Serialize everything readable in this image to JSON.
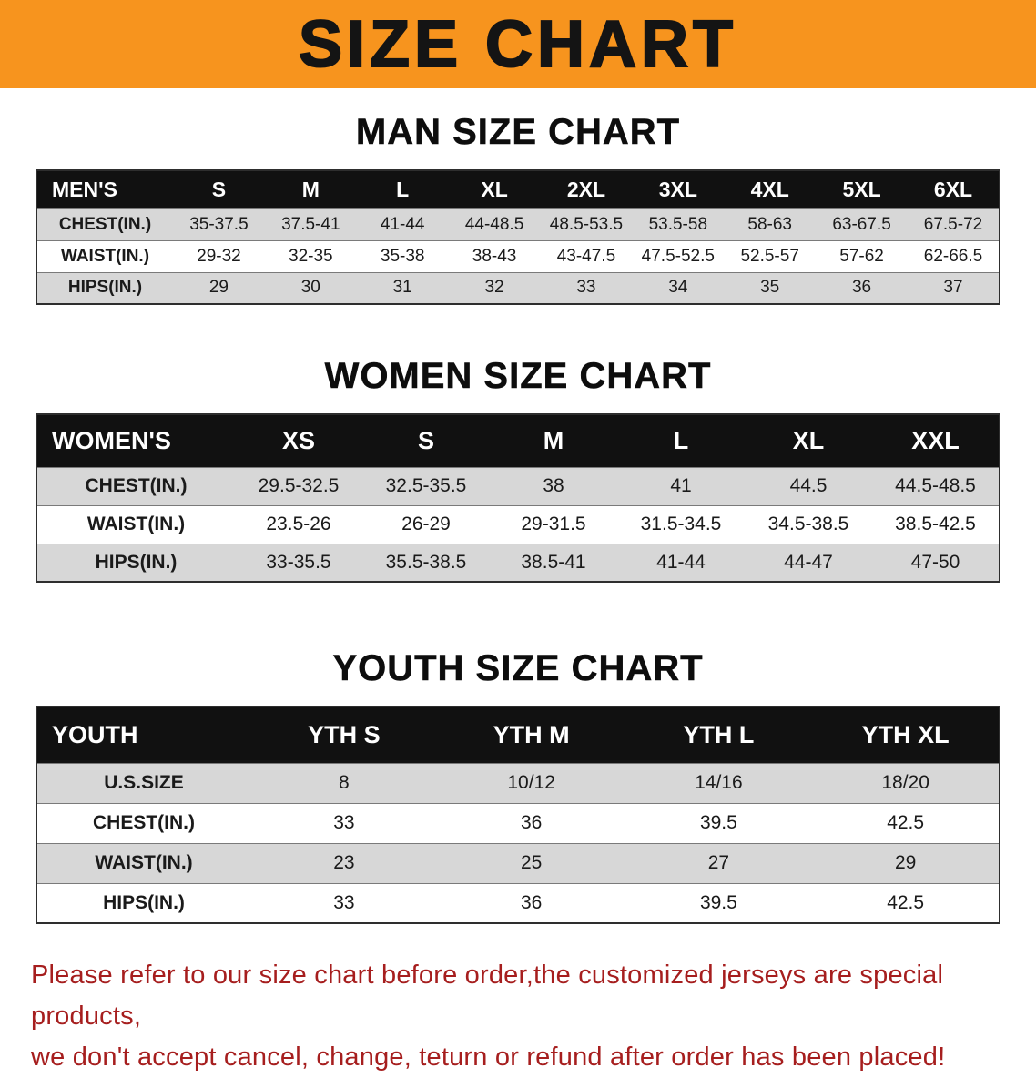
{
  "banner": {
    "title": "SIZE CHART",
    "bg_color": "#F7941E"
  },
  "colors": {
    "table_header_bg": "#111111",
    "table_row_alt": "#d7d7d7",
    "disclaimer_text": "#A61E1E"
  },
  "sections": {
    "men": {
      "heading": "MAN SIZE CHART",
      "table": {
        "header": [
          "MEN'S",
          "S",
          "M",
          "L",
          "XL",
          "2XL",
          "3XL",
          "4XL",
          "5XL",
          "6XL"
        ],
        "rows": [
          [
            "CHEST(IN.)",
            "35-37.5",
            "37.5-41",
            "41-44",
            "44-48.5",
            "48.5-53.5",
            "53.5-58",
            "58-63",
            "63-67.5",
            "67.5-72"
          ],
          [
            "WAIST(IN.)",
            "29-32",
            "32-35",
            "35-38",
            "38-43",
            "43-47.5",
            "47.5-52.5",
            "52.5-57",
            "57-62",
            "62-66.5"
          ],
          [
            "HIPS(IN.)",
            "29",
            "30",
            "31",
            "32",
            "33",
            "34",
            "35",
            "36",
            "37"
          ]
        ]
      }
    },
    "women": {
      "heading": "WOMEN SIZE CHART",
      "table": {
        "header": [
          "WOMEN'S",
          "XS",
          "S",
          "M",
          "L",
          "XL",
          "XXL"
        ],
        "rows": [
          [
            "CHEST(IN.)",
            "29.5-32.5",
            "32.5-35.5",
            "38",
            "41",
            "44.5",
            "44.5-48.5"
          ],
          [
            "WAIST(IN.)",
            "23.5-26",
            "26-29",
            "29-31.5",
            "31.5-34.5",
            "34.5-38.5",
            "38.5-42.5"
          ],
          [
            "HIPS(IN.)",
            "33-35.5",
            "35.5-38.5",
            "38.5-41",
            "41-44",
            "44-47",
            "47-50"
          ]
        ]
      }
    },
    "youth": {
      "heading": "YOUTH SIZE CHART",
      "table": {
        "header": [
          "YOUTH",
          "YTH S",
          "YTH M",
          "YTH L",
          "YTH XL"
        ],
        "rows": [
          [
            "U.S.SIZE",
            "8",
            "10/12",
            "14/16",
            "18/20"
          ],
          [
            "CHEST(IN.)",
            "33",
            "36",
            "39.5",
            "42.5"
          ],
          [
            "WAIST(IN.)",
            "23",
            "25",
            "27",
            "29"
          ],
          [
            "HIPS(IN.)",
            "33",
            "36",
            "39.5",
            "42.5"
          ]
        ]
      }
    }
  },
  "disclaimer": {
    "line1": "Please refer to our size chart before order,the customized jerseys are special products,",
    "line2": "we don't accept cancel, change, teturn or refund after order has been placed!"
  }
}
